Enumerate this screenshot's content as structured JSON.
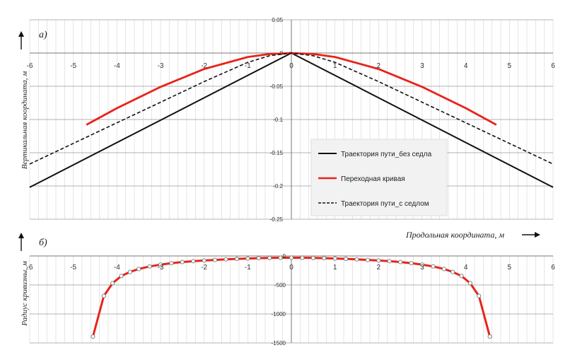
{
  "chart_data": [
    {
      "panel_label": "а)",
      "type": "line",
      "ylabel": "Вертикальная координата, м",
      "xlim": [
        -6,
        6
      ],
      "ylim": [
        -0.25,
        0.05
      ],
      "x_ticks": [
        -6,
        -5,
        -4,
        -3,
        -2,
        -1,
        0,
        1,
        2,
        3,
        4,
        5,
        6
      ],
      "y_ticks": [
        0.05,
        0,
        -0.05,
        -0.1,
        -0.15,
        -0.2,
        -0.25
      ],
      "y_tick_labels": [
        "0.05",
        "0",
        "-0.05",
        "-0.1",
        "-0.15",
        "-0.2",
        "-0.25"
      ],
      "grid": true,
      "legend_position": "bottom-right",
      "series": [
        {
          "name": "Траектория пути_без седла",
          "color": "#111111",
          "dash": "solid",
          "x": [
            -6,
            0,
            6
          ],
          "y": [
            -0.202,
            0,
            -0.202
          ]
        },
        {
          "name": "Переходная кривая",
          "color": "#e8231a",
          "dash": "solid",
          "x": [
            -4.7,
            -4,
            -3,
            -2,
            -1,
            -0.5,
            0,
            0.5,
            1,
            2,
            3,
            4,
            4.7
          ],
          "y": [
            -0.108,
            -0.083,
            -0.051,
            -0.024,
            -0.006,
            -0.0015,
            0,
            -0.0015,
            -0.006,
            -0.024,
            -0.051,
            -0.083,
            -0.108
          ]
        },
        {
          "name": "Траектория пути_с седлом",
          "color": "#111111",
          "dash": "dashed",
          "x": [
            -6,
            -5,
            -4,
            -3,
            -2,
            -1,
            -0.5,
            0,
            0.5,
            1,
            2,
            3,
            4,
            5,
            6
          ],
          "y": [
            -0.167,
            -0.136,
            -0.105,
            -0.074,
            -0.043,
            -0.014,
            -0.004,
            0,
            -0.004,
            -0.014,
            -0.043,
            -0.074,
            -0.105,
            -0.136,
            -0.167
          ]
        }
      ]
    },
    {
      "panel_label": "б)",
      "type": "line",
      "xlabel": "Продольная координата, м",
      "ylabel": "Радиус кривизны, м",
      "xlim": [
        -6,
        6
      ],
      "ylim": [
        -1500,
        0
      ],
      "x_ticks": [
        -6,
        -5,
        -4,
        -3,
        -2,
        -1,
        0,
        1,
        2,
        3,
        4,
        5,
        6
      ],
      "y_ticks": [
        0,
        -500,
        -1000,
        -1500
      ],
      "y_tick_labels": [
        "0",
        "-500",
        "-1000",
        "-1500"
      ],
      "grid": true,
      "series": [
        {
          "color": "#e8231a",
          "marker": "circle",
          "x": [
            -4.55,
            -4.3,
            -4.1,
            -3.9,
            -3.7,
            -3.5,
            -3.25,
            -3,
            -2.75,
            -2.5,
            -2.25,
            -2,
            -1.75,
            -1.5,
            -1.25,
            -1,
            -0.75,
            -0.5,
            -0.25,
            0,
            0.25,
            0.5,
            0.75,
            1,
            1.25,
            1.5,
            1.75,
            2,
            2.25,
            2.5,
            2.75,
            3,
            3.25,
            3.5,
            3.7,
            3.9,
            4.1,
            4.3,
            4.55
          ],
          "y": [
            -1390,
            -690,
            -470,
            -345,
            -275,
            -225,
            -180,
            -150,
            -125,
            -105,
            -90,
            -78,
            -68,
            -58,
            -50,
            -44,
            -38,
            -34,
            -31,
            -30,
            -31,
            -34,
            -38,
            -44,
            -50,
            -58,
            -68,
            -78,
            -90,
            -105,
            -125,
            -150,
            -180,
            -225,
            -275,
            -345,
            -470,
            -690,
            -1390
          ]
        }
      ]
    }
  ]
}
